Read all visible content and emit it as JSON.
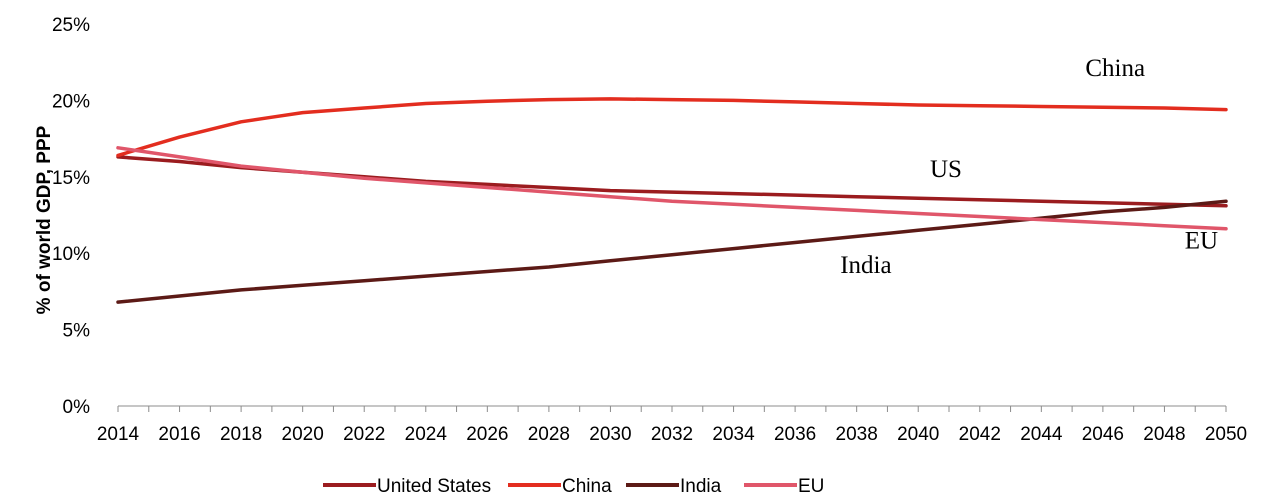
{
  "chart_data": {
    "type": "line",
    "title": "",
    "xlabel": "",
    "ylabel": "% of world GDP, PPP",
    "xlim": [
      2014,
      2050
    ],
    "ylim": [
      0,
      25
    ],
    "x_ticks": [
      2014,
      2016,
      2018,
      2020,
      2022,
      2024,
      2026,
      2028,
      2030,
      2032,
      2034,
      2036,
      2038,
      2040,
      2042,
      2044,
      2046,
      2048,
      2050
    ],
    "y_ticks": [
      0,
      5,
      10,
      15,
      20,
      25
    ],
    "y_tick_labels": [
      "0%",
      "5%",
      "10%",
      "15%",
      "20%",
      "25%"
    ],
    "grid": false,
    "legend_position": "bottom",
    "series": [
      {
        "name": "United States",
        "color": "#9b1c1f",
        "x": [
          2014,
          2016,
          2018,
          2020,
          2022,
          2024,
          2026,
          2028,
          2030,
          2032,
          2034,
          2036,
          2038,
          2040,
          2042,
          2044,
          2046,
          2048,
          2050
        ],
        "values": [
          16.3,
          16.0,
          15.6,
          15.3,
          15.0,
          14.7,
          14.5,
          14.3,
          14.1,
          14.0,
          13.9,
          13.8,
          13.7,
          13.6,
          13.5,
          13.4,
          13.3,
          13.2,
          13.1
        ]
      },
      {
        "name": "China",
        "color": "#e32d1f",
        "x": [
          2014,
          2016,
          2018,
          2019,
          2020,
          2022,
          2024,
          2026,
          2028,
          2030,
          2032,
          2034,
          2036,
          2038,
          2040,
          2042,
          2044,
          2046,
          2048,
          2050
        ],
        "values": [
          16.4,
          17.6,
          18.6,
          18.9,
          19.2,
          19.5,
          19.8,
          19.95,
          20.05,
          20.1,
          20.05,
          20.0,
          19.9,
          19.8,
          19.7,
          19.65,
          19.6,
          19.55,
          19.5,
          19.4
        ]
      },
      {
        "name": "India",
        "color": "#5c1a16",
        "x": [
          2014,
          2016,
          2018,
          2020,
          2022,
          2024,
          2026,
          2028,
          2030,
          2032,
          2034,
          2036,
          2038,
          2040,
          2042,
          2044,
          2046,
          2048,
          2050
        ],
        "values": [
          6.8,
          7.2,
          7.6,
          7.9,
          8.2,
          8.5,
          8.8,
          9.1,
          9.5,
          9.9,
          10.3,
          10.7,
          11.1,
          11.5,
          11.9,
          12.3,
          12.7,
          13.0,
          13.4
        ]
      },
      {
        "name": "EU",
        "color": "#e0566a",
        "x": [
          2014,
          2016,
          2018,
          2020,
          2022,
          2024,
          2026,
          2028,
          2030,
          2032,
          2034,
          2036,
          2038,
          2040,
          2042,
          2044,
          2046,
          2048,
          2050
        ],
        "values": [
          16.9,
          16.3,
          15.7,
          15.3,
          14.9,
          14.6,
          14.3,
          14.0,
          13.7,
          13.4,
          13.2,
          13.0,
          12.8,
          12.6,
          12.4,
          12.2,
          12.0,
          11.8,
          11.6
        ]
      }
    ],
    "annotations": [
      {
        "text": "China",
        "x": 2046.4,
        "y": 21.6
      },
      {
        "text": "US",
        "x": 2040.9,
        "y": 15.0
      },
      {
        "text": "EU",
        "x": 2049.2,
        "y": 10.3
      },
      {
        "text": "India",
        "x": 2038.3,
        "y": 8.7
      }
    ]
  }
}
